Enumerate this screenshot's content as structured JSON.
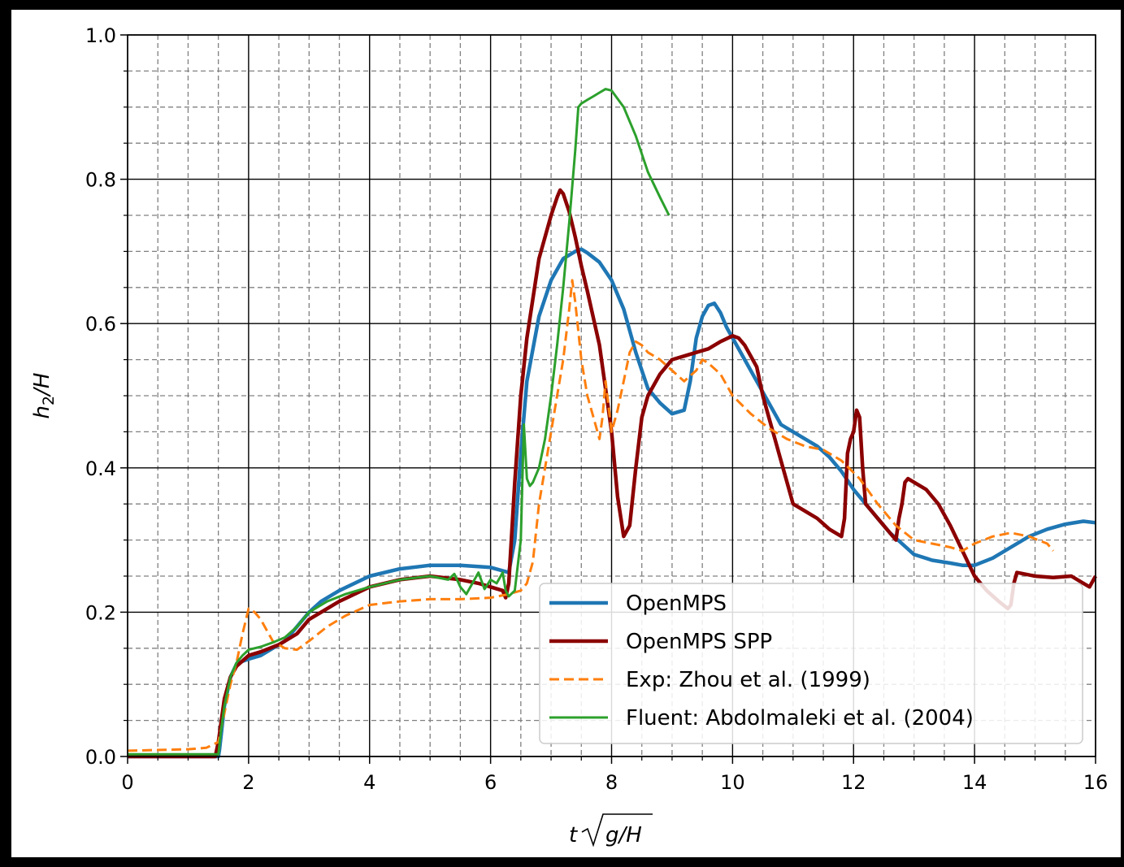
{
  "chart_data": {
    "type": "line",
    "xlabel_var": "t",
    "xlabel_root": "g/H",
    "ylabel_main": "h",
    "ylabel_sub": "2",
    "ylabel_tail": "/H",
    "xlim": [
      0,
      16
    ],
    "ylim": [
      0,
      1.0
    ],
    "xticks": [
      0,
      2,
      4,
      6,
      8,
      10,
      12,
      14,
      16
    ],
    "xtick_labels": [
      "0",
      "2",
      "4",
      "6",
      "8",
      "10",
      "12",
      "14",
      "16"
    ],
    "yticks": [
      0,
      0.2,
      0.4,
      0.6,
      0.8,
      1.0
    ],
    "ytick_labels": [
      "0.0",
      "0.2",
      "0.4",
      "0.6",
      "0.8",
      "1.0"
    ],
    "grid": "major solid, minor dashed",
    "legend_position": "lower-right",
    "series": [
      {
        "name": "OpenMPS",
        "color": "#1f77b4",
        "style": "solid",
        "x": [
          0,
          1.5,
          1.52,
          1.6,
          1.7,
          1.8,
          1.9,
          2.0,
          2.2,
          2.4,
          2.6,
          2.8,
          3.0,
          3.2,
          3.5,
          4.0,
          4.5,
          5.0,
          5.5,
          6.0,
          6.3,
          6.4,
          6.5,
          6.6,
          6.8,
          7.0,
          7.2,
          7.4,
          7.5,
          7.6,
          7.8,
          8.0,
          8.2,
          8.4,
          8.6,
          8.8,
          9.0,
          9.2,
          9.3,
          9.4,
          9.5,
          9.6,
          9.7,
          9.8,
          9.9,
          10.0,
          10.2,
          10.4,
          10.6,
          10.8,
          11.0,
          11.2,
          11.4,
          11.6,
          11.8,
          12.0,
          12.2,
          12.4,
          12.6,
          12.8,
          13.0,
          13.3,
          13.6,
          13.8,
          14.0,
          14.3,
          14.6,
          14.9,
          15.2,
          15.5,
          15.8,
          16.0
        ],
        "y": [
          0.0,
          0.0,
          0.01,
          0.07,
          0.11,
          0.128,
          0.132,
          0.135,
          0.14,
          0.15,
          0.16,
          0.18,
          0.2,
          0.215,
          0.23,
          0.25,
          0.26,
          0.265,
          0.265,
          0.262,
          0.255,
          0.3,
          0.42,
          0.52,
          0.61,
          0.66,
          0.69,
          0.7,
          0.703,
          0.698,
          0.685,
          0.66,
          0.62,
          0.56,
          0.51,
          0.49,
          0.475,
          0.48,
          0.52,
          0.58,
          0.61,
          0.625,
          0.628,
          0.615,
          0.595,
          0.58,
          0.55,
          0.52,
          0.49,
          0.46,
          0.45,
          0.44,
          0.43,
          0.415,
          0.395,
          0.37,
          0.35,
          0.33,
          0.31,
          0.295,
          0.28,
          0.272,
          0.268,
          0.265,
          0.265,
          0.275,
          0.29,
          0.305,
          0.315,
          0.322,
          0.326,
          0.324
        ]
      },
      {
        "name": "OpenMPS SPP",
        "color": "#8b0000",
        "style": "solid",
        "x": [
          0,
          1.45,
          1.5,
          1.6,
          1.7,
          1.8,
          2.0,
          2.2,
          2.5,
          2.8,
          3.0,
          3.5,
          4.0,
          4.5,
          5.0,
          5.5,
          5.8,
          6.0,
          6.2,
          6.25,
          6.3,
          6.4,
          6.5,
          6.6,
          6.8,
          7.0,
          7.1,
          7.15,
          7.2,
          7.3,
          7.4,
          7.5,
          7.6,
          7.8,
          8.0,
          8.1,
          8.2,
          8.3,
          8.4,
          8.5,
          8.6,
          8.8,
          9.0,
          9.2,
          9.4,
          9.6,
          9.8,
          10.0,
          10.1,
          10.2,
          10.4,
          10.5,
          10.6,
          10.7,
          10.8,
          10.9,
          11.0,
          11.2,
          11.4,
          11.6,
          11.8,
          11.85,
          11.9,
          11.95,
          12.0,
          12.05,
          12.1,
          12.15,
          12.2,
          12.4,
          12.6,
          12.7,
          12.75,
          12.8,
          12.85,
          12.9,
          13.0,
          13.2,
          13.4,
          13.6,
          13.8,
          14.0,
          14.2,
          14.4,
          14.55,
          14.6,
          14.65,
          14.7,
          15.0,
          15.3,
          15.6,
          15.8,
          15.9,
          16.0
        ],
        "y": [
          0.0,
          0.0,
          0.02,
          0.08,
          0.11,
          0.125,
          0.14,
          0.145,
          0.155,
          0.17,
          0.19,
          0.215,
          0.235,
          0.245,
          0.25,
          0.245,
          0.24,
          0.235,
          0.23,
          0.22,
          0.24,
          0.38,
          0.5,
          0.58,
          0.69,
          0.75,
          0.775,
          0.785,
          0.78,
          0.755,
          0.72,
          0.68,
          0.645,
          0.57,
          0.45,
          0.36,
          0.305,
          0.32,
          0.4,
          0.47,
          0.5,
          0.53,
          0.55,
          0.555,
          0.56,
          0.565,
          0.575,
          0.583,
          0.58,
          0.57,
          0.54,
          0.5,
          0.47,
          0.44,
          0.41,
          0.38,
          0.35,
          0.34,
          0.33,
          0.315,
          0.305,
          0.33,
          0.42,
          0.44,
          0.45,
          0.48,
          0.47,
          0.4,
          0.35,
          0.33,
          0.31,
          0.3,
          0.33,
          0.35,
          0.38,
          0.385,
          0.38,
          0.37,
          0.35,
          0.32,
          0.285,
          0.25,
          0.23,
          0.215,
          0.205,
          0.21,
          0.24,
          0.255,
          0.25,
          0.248,
          0.25,
          0.24,
          0.235,
          0.25
        ]
      },
      {
        "name": "Exp: Zhou et al. (1999)",
        "color": "#ff7f0e",
        "style": "dashed",
        "x": [
          0,
          1.0,
          1.3,
          1.5,
          1.6,
          1.7,
          1.8,
          1.9,
          2.0,
          2.1,
          2.2,
          2.4,
          2.6,
          2.8,
          3.0,
          3.3,
          3.6,
          4.0,
          4.5,
          5.0,
          5.5,
          6.0,
          6.3,
          6.5,
          6.6,
          6.7,
          6.8,
          7.0,
          7.1,
          7.2,
          7.3,
          7.35,
          7.4,
          7.5,
          7.6,
          7.7,
          7.8,
          7.85,
          7.9,
          8.0,
          8.1,
          8.2,
          8.3,
          8.4,
          8.5,
          8.6,
          8.8,
          9.0,
          9.2,
          9.4,
          9.5,
          9.6,
          9.8,
          10.0,
          10.3,
          10.6,
          10.9,
          11.2,
          11.5,
          11.8,
          12.1,
          12.4,
          12.7,
          13.0,
          13.3,
          13.6,
          13.8,
          14.0,
          14.3,
          14.6,
          14.9,
          15.2,
          15.3
        ],
        "y": [
          0.008,
          0.01,
          0.012,
          0.02,
          0.06,
          0.1,
          0.13,
          0.17,
          0.205,
          0.2,
          0.19,
          0.16,
          0.15,
          0.148,
          0.16,
          0.18,
          0.195,
          0.21,
          0.215,
          0.218,
          0.218,
          0.22,
          0.225,
          0.23,
          0.24,
          0.27,
          0.35,
          0.45,
          0.5,
          0.55,
          0.62,
          0.66,
          0.63,
          0.55,
          0.5,
          0.47,
          0.44,
          0.47,
          0.52,
          0.45,
          0.48,
          0.52,
          0.56,
          0.575,
          0.57,
          0.56,
          0.55,
          0.535,
          0.52,
          0.535,
          0.55,
          0.545,
          0.53,
          0.5,
          0.475,
          0.455,
          0.44,
          0.43,
          0.425,
          0.41,
          0.385,
          0.35,
          0.32,
          0.3,
          0.295,
          0.29,
          0.285,
          0.295,
          0.305,
          0.31,
          0.305,
          0.295,
          0.285
        ]
      },
      {
        "name": "Fluent: Abdolmaleki et al. (2004)",
        "color": "#2ca02c",
        "style": "solid",
        "x": [
          0,
          1.5,
          1.55,
          1.6,
          1.7,
          1.8,
          1.9,
          2.0,
          2.2,
          2.4,
          2.6,
          2.8,
          3.0,
          3.3,
          3.6,
          4.0,
          4.5,
          5.0,
          5.3,
          5.4,
          5.5,
          5.6,
          5.7,
          5.8,
          5.9,
          6.0,
          6.1,
          6.2,
          6.25,
          6.3,
          6.4,
          6.5,
          6.55,
          6.6,
          6.65,
          6.7,
          6.8,
          6.9,
          7.0,
          7.1,
          7.2,
          7.3,
          7.4,
          7.45,
          7.5,
          7.6,
          7.7,
          7.8,
          7.9,
          8.0,
          8.2,
          8.4,
          8.6,
          8.8,
          8.95
        ],
        "y": [
          0.003,
          0.003,
          0.04,
          0.07,
          0.11,
          0.13,
          0.14,
          0.148,
          0.152,
          0.158,
          0.165,
          0.18,
          0.2,
          0.215,
          0.225,
          0.235,
          0.245,
          0.25,
          0.245,
          0.253,
          0.235,
          0.225,
          0.24,
          0.255,
          0.232,
          0.245,
          0.24,
          0.255,
          0.23,
          0.222,
          0.23,
          0.3,
          0.46,
          0.385,
          0.375,
          0.38,
          0.4,
          0.44,
          0.5,
          0.57,
          0.65,
          0.74,
          0.84,
          0.9,
          0.905,
          0.91,
          0.915,
          0.92,
          0.925,
          0.923,
          0.9,
          0.86,
          0.81,
          0.775,
          0.75
        ]
      }
    ]
  }
}
